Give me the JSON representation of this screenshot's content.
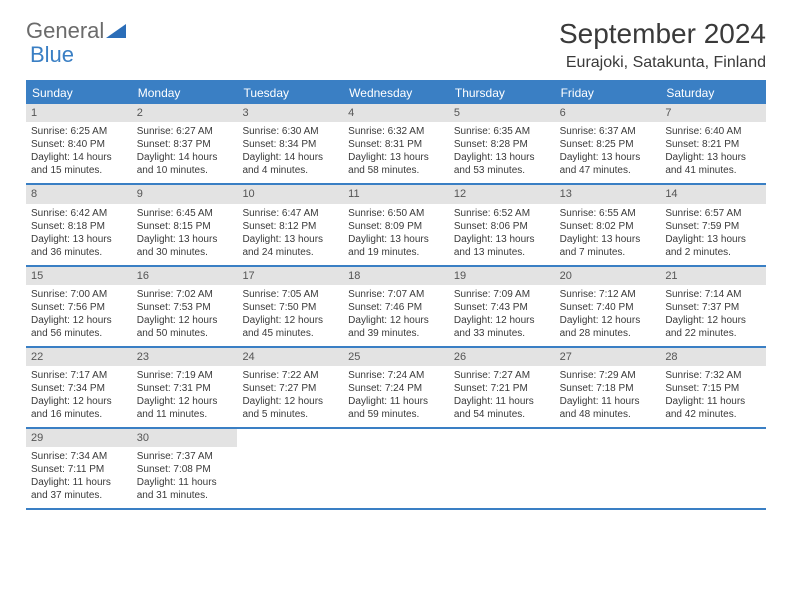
{
  "logo": {
    "part1": "General",
    "part2": "Blue"
  },
  "title": "September 2024",
  "location": "Eurajoki, Satakunta, Finland",
  "colors": {
    "accent": "#3a7fc4",
    "band": "#e3e3e3",
    "text": "#3a3a3a",
    "logo_gray": "#6b6b6b"
  },
  "weekdays": [
    "Sunday",
    "Monday",
    "Tuesday",
    "Wednesday",
    "Thursday",
    "Friday",
    "Saturday"
  ],
  "weeks": [
    [
      {
        "n": "1",
        "sr": "Sunrise: 6:25 AM",
        "ss": "Sunset: 8:40 PM",
        "d1": "Daylight: 14 hours",
        "d2": "and 15 minutes."
      },
      {
        "n": "2",
        "sr": "Sunrise: 6:27 AM",
        "ss": "Sunset: 8:37 PM",
        "d1": "Daylight: 14 hours",
        "d2": "and 10 minutes."
      },
      {
        "n": "3",
        "sr": "Sunrise: 6:30 AM",
        "ss": "Sunset: 8:34 PM",
        "d1": "Daylight: 14 hours",
        "d2": "and 4 minutes."
      },
      {
        "n": "4",
        "sr": "Sunrise: 6:32 AM",
        "ss": "Sunset: 8:31 PM",
        "d1": "Daylight: 13 hours",
        "d2": "and 58 minutes."
      },
      {
        "n": "5",
        "sr": "Sunrise: 6:35 AM",
        "ss": "Sunset: 8:28 PM",
        "d1": "Daylight: 13 hours",
        "d2": "and 53 minutes."
      },
      {
        "n": "6",
        "sr": "Sunrise: 6:37 AM",
        "ss": "Sunset: 8:25 PM",
        "d1": "Daylight: 13 hours",
        "d2": "and 47 minutes."
      },
      {
        "n": "7",
        "sr": "Sunrise: 6:40 AM",
        "ss": "Sunset: 8:21 PM",
        "d1": "Daylight: 13 hours",
        "d2": "and 41 minutes."
      }
    ],
    [
      {
        "n": "8",
        "sr": "Sunrise: 6:42 AM",
        "ss": "Sunset: 8:18 PM",
        "d1": "Daylight: 13 hours",
        "d2": "and 36 minutes."
      },
      {
        "n": "9",
        "sr": "Sunrise: 6:45 AM",
        "ss": "Sunset: 8:15 PM",
        "d1": "Daylight: 13 hours",
        "d2": "and 30 minutes."
      },
      {
        "n": "10",
        "sr": "Sunrise: 6:47 AM",
        "ss": "Sunset: 8:12 PM",
        "d1": "Daylight: 13 hours",
        "d2": "and 24 minutes."
      },
      {
        "n": "11",
        "sr": "Sunrise: 6:50 AM",
        "ss": "Sunset: 8:09 PM",
        "d1": "Daylight: 13 hours",
        "d2": "and 19 minutes."
      },
      {
        "n": "12",
        "sr": "Sunrise: 6:52 AM",
        "ss": "Sunset: 8:06 PM",
        "d1": "Daylight: 13 hours",
        "d2": "and 13 minutes."
      },
      {
        "n": "13",
        "sr": "Sunrise: 6:55 AM",
        "ss": "Sunset: 8:02 PM",
        "d1": "Daylight: 13 hours",
        "d2": "and 7 minutes."
      },
      {
        "n": "14",
        "sr": "Sunrise: 6:57 AM",
        "ss": "Sunset: 7:59 PM",
        "d1": "Daylight: 13 hours",
        "d2": "and 2 minutes."
      }
    ],
    [
      {
        "n": "15",
        "sr": "Sunrise: 7:00 AM",
        "ss": "Sunset: 7:56 PM",
        "d1": "Daylight: 12 hours",
        "d2": "and 56 minutes."
      },
      {
        "n": "16",
        "sr": "Sunrise: 7:02 AM",
        "ss": "Sunset: 7:53 PM",
        "d1": "Daylight: 12 hours",
        "d2": "and 50 minutes."
      },
      {
        "n": "17",
        "sr": "Sunrise: 7:05 AM",
        "ss": "Sunset: 7:50 PM",
        "d1": "Daylight: 12 hours",
        "d2": "and 45 minutes."
      },
      {
        "n": "18",
        "sr": "Sunrise: 7:07 AM",
        "ss": "Sunset: 7:46 PM",
        "d1": "Daylight: 12 hours",
        "d2": "and 39 minutes."
      },
      {
        "n": "19",
        "sr": "Sunrise: 7:09 AM",
        "ss": "Sunset: 7:43 PM",
        "d1": "Daylight: 12 hours",
        "d2": "and 33 minutes."
      },
      {
        "n": "20",
        "sr": "Sunrise: 7:12 AM",
        "ss": "Sunset: 7:40 PM",
        "d1": "Daylight: 12 hours",
        "d2": "and 28 minutes."
      },
      {
        "n": "21",
        "sr": "Sunrise: 7:14 AM",
        "ss": "Sunset: 7:37 PM",
        "d1": "Daylight: 12 hours",
        "d2": "and 22 minutes."
      }
    ],
    [
      {
        "n": "22",
        "sr": "Sunrise: 7:17 AM",
        "ss": "Sunset: 7:34 PM",
        "d1": "Daylight: 12 hours",
        "d2": "and 16 minutes."
      },
      {
        "n": "23",
        "sr": "Sunrise: 7:19 AM",
        "ss": "Sunset: 7:31 PM",
        "d1": "Daylight: 12 hours",
        "d2": "and 11 minutes."
      },
      {
        "n": "24",
        "sr": "Sunrise: 7:22 AM",
        "ss": "Sunset: 7:27 PM",
        "d1": "Daylight: 12 hours",
        "d2": "and 5 minutes."
      },
      {
        "n": "25",
        "sr": "Sunrise: 7:24 AM",
        "ss": "Sunset: 7:24 PM",
        "d1": "Daylight: 11 hours",
        "d2": "and 59 minutes."
      },
      {
        "n": "26",
        "sr": "Sunrise: 7:27 AM",
        "ss": "Sunset: 7:21 PM",
        "d1": "Daylight: 11 hours",
        "d2": "and 54 minutes."
      },
      {
        "n": "27",
        "sr": "Sunrise: 7:29 AM",
        "ss": "Sunset: 7:18 PM",
        "d1": "Daylight: 11 hours",
        "d2": "and 48 minutes."
      },
      {
        "n": "28",
        "sr": "Sunrise: 7:32 AM",
        "ss": "Sunset: 7:15 PM",
        "d1": "Daylight: 11 hours",
        "d2": "and 42 minutes."
      }
    ],
    [
      {
        "n": "29",
        "sr": "Sunrise: 7:34 AM",
        "ss": "Sunset: 7:11 PM",
        "d1": "Daylight: 11 hours",
        "d2": "and 37 minutes."
      },
      {
        "n": "30",
        "sr": "Sunrise: 7:37 AM",
        "ss": "Sunset: 7:08 PM",
        "d1": "Daylight: 11 hours",
        "d2": "and 31 minutes."
      },
      null,
      null,
      null,
      null,
      null
    ]
  ]
}
